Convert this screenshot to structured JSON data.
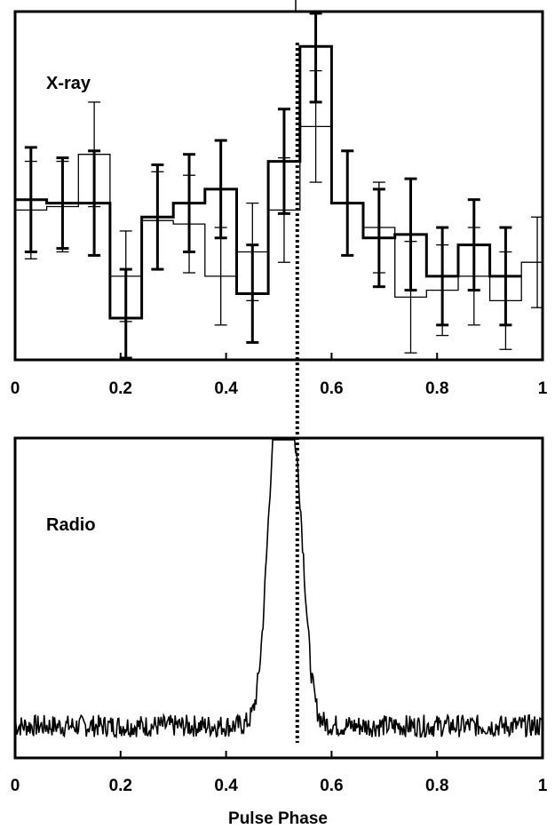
{
  "chart_data": [
    {
      "type": "step",
      "label": "X-ray",
      "xlim": [
        0,
        1
      ],
      "ylim": [
        0,
        1
      ],
      "xticks": [
        "0",
        "0.2",
        "0.4",
        "0.6",
        "0.8",
        "1"
      ],
      "grid": false,
      "series": [
        {
          "style": "thin",
          "x": [
            0.0,
            0.06,
            0.12,
            0.18,
            0.24,
            0.3,
            0.36,
            0.42,
            0.48,
            0.54,
            0.6,
            0.66,
            0.72,
            0.78,
            0.84,
            0.9,
            0.96
          ],
          "y": [
            0.43,
            0.44,
            0.59,
            0.24,
            0.4,
            0.39,
            0.24,
            0.31,
            0.43,
            0.67,
            0.45,
            0.38,
            0.18,
            0.2,
            0.24,
            0.17,
            0.28
          ],
          "err": [
            0.14,
            0.13,
            0.15,
            0.13,
            0.14,
            0.14,
            0.14,
            0.14,
            0.15,
            0.16,
            0.15,
            0.13,
            0.16,
            0.13,
            0.14,
            0.14,
            0.13
          ]
        },
        {
          "style": "thick",
          "x": [
            0.0,
            0.06,
            0.12,
            0.18,
            0.24,
            0.3,
            0.36,
            0.42,
            0.48,
            0.54,
            0.6,
            0.66,
            0.72,
            0.78,
            0.84,
            0.9
          ],
          "y": [
            0.46,
            0.45,
            0.45,
            0.12,
            0.41,
            0.45,
            0.49,
            0.19,
            0.57,
            0.9,
            0.45,
            0.35,
            0.36,
            0.24,
            0.33,
            0.24
          ],
          "err": [
            0.15,
            0.13,
            0.15,
            0.14,
            0.15,
            0.14,
            0.14,
            0.14,
            0.15,
            0.16,
            0.15,
            0.14,
            0.16,
            0.14,
            0.13,
            0.14
          ]
        }
      ],
      "marker_line_x": 0.535
    },
    {
      "type": "line",
      "label": "Radio",
      "xlim": [
        0,
        1
      ],
      "ylim": [
        0,
        1
      ],
      "xticks": [
        "0",
        "0.2",
        "0.4",
        "0.6",
        "0.8",
        "1"
      ],
      "grid": false,
      "baseline": 0.1,
      "noise_amplitude": 0.035,
      "peaks": [
        {
          "x": 0.497,
          "height": 0.88,
          "width": 0.018
        },
        {
          "x": 0.533,
          "height": 0.62,
          "width": 0.016
        }
      ],
      "marker_line_x": 0.535,
      "xlabel": "Pulse Phase"
    }
  ]
}
